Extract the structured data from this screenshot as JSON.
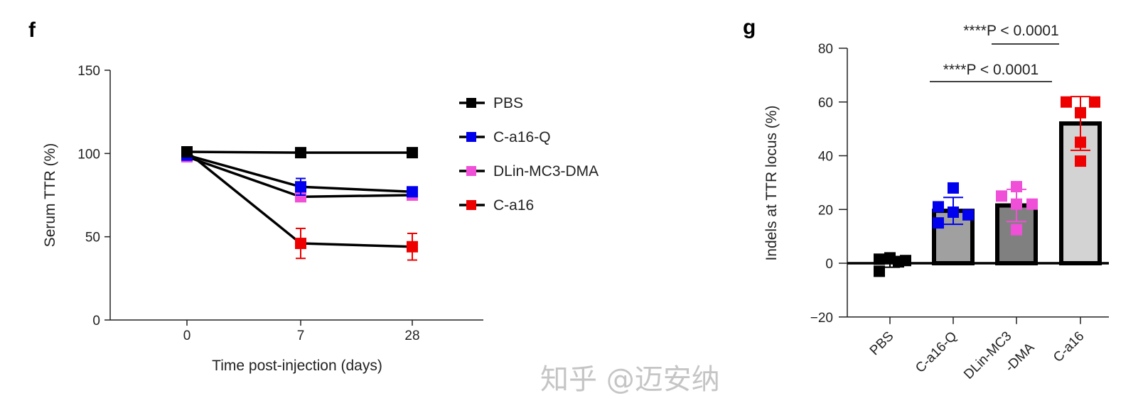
{
  "panels": {
    "f": "f",
    "g": "g"
  },
  "watermark": "知乎 @迈安纳",
  "chart_data": [
    {
      "type": "line",
      "panel": "f",
      "xlabel": "Time post-injection (days)",
      "ylabel": "Serum TTR (%)",
      "categories": [
        "0",
        "7",
        "28"
      ],
      "ylim": [
        0,
        150
      ],
      "yticks": [
        "0",
        "50",
        "100",
        "150"
      ],
      "legend_position": "right",
      "series": [
        {
          "name": "PBS",
          "color": "#000000",
          "values": [
            101,
            100.5,
            100.5
          ],
          "err": [
            1,
            1,
            1
          ]
        },
        {
          "name": "C-a16-Q",
          "color": "#0000ee",
          "values": [
            99,
            80,
            77
          ],
          "err": [
            1,
            5,
            2
          ]
        },
        {
          "name": "DLin-MC3-DMA",
          "color": "#f050d8",
          "values": [
            98,
            74,
            75
          ],
          "err": [
            1,
            2,
            1
          ]
        },
        {
          "name": "C-a16",
          "color": "#ee0000",
          "values": [
            101,
            46,
            44
          ],
          "err": [
            2,
            9,
            8
          ]
        }
      ]
    },
    {
      "type": "bar",
      "panel": "g",
      "ylabel": "Indels at TTR locus (%)",
      "ylim": [
        -20,
        80
      ],
      "yticks": [
        "−20",
        "0",
        "20",
        "40",
        "60",
        "80"
      ],
      "categories": [
        "PBS",
        "C-a16-Q",
        "DLin-MC3\n-DMA",
        "C-a16"
      ],
      "category_labels": [
        "PBS",
        "C-a16-Q",
        "DLin-MC3",
        "-DMA",
        "C-a16"
      ],
      "bar_colors": [
        "#ffffff",
        "#a0a0a0",
        "#808080",
        "#d3d3d3"
      ],
      "point_colors": [
        "#000000",
        "#0000ee",
        "#f050d8",
        "#ee0000"
      ],
      "means": [
        0.5,
        19.5,
        21.5,
        52
      ],
      "sd": [
        2,
        5,
        6,
        10
      ],
      "points": [
        [
          1.5,
          2,
          -3,
          0.5,
          1
        ],
        [
          21,
          28,
          19,
          15,
          18
        ],
        [
          25,
          28.5,
          22,
          22,
          12.5
        ],
        [
          60,
          60,
          56,
          45,
          38
        ]
      ],
      "annotations": [
        {
          "text": "****P < 0.0001",
          "from": "DLin-MC3-DMA",
          "to": "C-a16"
        },
        {
          "text": "****P < 0.0001",
          "from": "C-a16-Q",
          "to": "C-a16"
        }
      ]
    }
  ]
}
